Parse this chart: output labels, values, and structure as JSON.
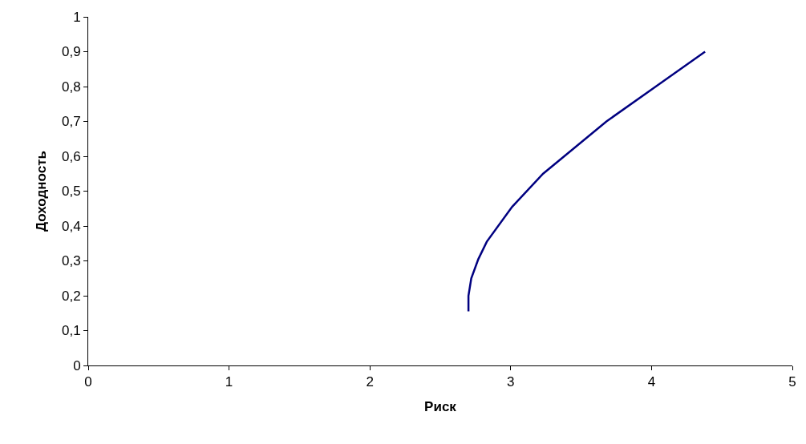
{
  "chart_data": {
    "type": "line",
    "xlabel": "Риск",
    "ylabel": "Доходность",
    "series": [
      {
        "color": "#000080",
        "x": [
          2.7,
          2.7,
          2.72,
          2.77,
          2.83,
          3.01,
          3.23,
          3.38,
          3.68,
          4.03,
          4.38
        ],
        "values": [
          0.155,
          0.2,
          0.25,
          0.305,
          0.355,
          0.455,
          0.55,
          0.6,
          0.7,
          0.8,
          0.9
        ]
      }
    ],
    "xlim": [
      0,
      5
    ],
    "xticks": [
      0,
      1,
      2,
      3,
      4,
      5
    ],
    "ylim": [
      0,
      1
    ],
    "yticks": [
      {
        "value": 0,
        "label": "0"
      },
      {
        "value": 0.1,
        "label": "0,1"
      },
      {
        "value": 0.2,
        "label": "0,2"
      },
      {
        "value": 0.3,
        "label": "0,3"
      },
      {
        "value": 0.4,
        "label": "0,4"
      },
      {
        "value": 0.5,
        "label": "0,5"
      },
      {
        "value": 0.6,
        "label": "0,6"
      },
      {
        "value": 0.7,
        "label": "0,7"
      },
      {
        "value": 0.8,
        "label": "0,8"
      },
      {
        "value": 0.9,
        "label": "0,9"
      },
      {
        "value": 1,
        "label": "1"
      }
    ],
    "legend": false
  }
}
